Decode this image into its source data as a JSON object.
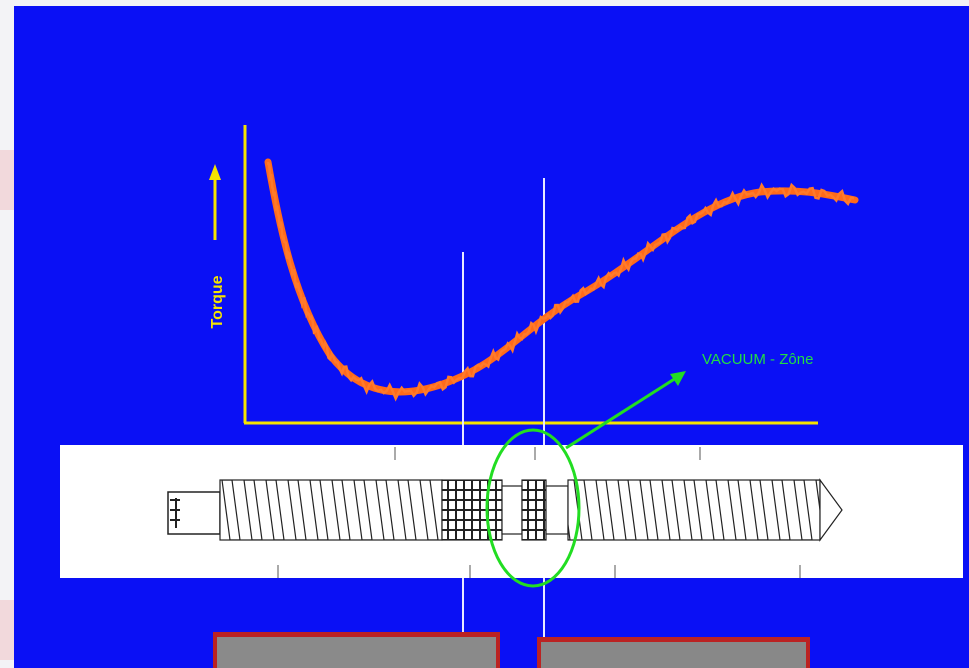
{
  "labels": {
    "axis": "Torque",
    "zone": "VACUUM - Zône"
  }
}
